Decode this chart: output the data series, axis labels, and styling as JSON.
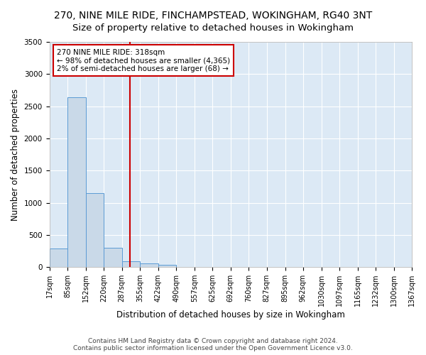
{
  "title_line1": "270, NINE MILE RIDE, FINCHAMPSTEAD, WOKINGHAM, RG40 3NT",
  "title_line2": "Size of property relative to detached houses in Wokingham",
  "xlabel": "Distribution of detached houses by size in Wokingham",
  "ylabel": "Number of detached properties",
  "bar_color": "#c9d9e8",
  "bar_edge_color": "#5b9bd5",
  "vline_x": 318,
  "vline_color": "#cc0000",
  "annotation_text": "270 NINE MILE RIDE: 318sqm\n← 98% of detached houses are smaller (4,365)\n2% of semi-detached houses are larger (68) →",
  "annotation_box_color": "#ffffff",
  "annotation_box_edge_color": "#cc0000",
  "footer_text": "Contains HM Land Registry data © Crown copyright and database right 2024.\nContains public sector information licensed under the Open Government Licence v3.0.",
  "bin_edges": [
    17,
    85,
    152,
    220,
    287,
    355,
    422,
    490,
    557,
    625,
    692,
    760,
    827,
    895,
    962,
    1030,
    1097,
    1165,
    1232,
    1300,
    1367
  ],
  "bin_counts": [
    290,
    2635,
    1145,
    295,
    95,
    60,
    35,
    0,
    0,
    0,
    0,
    0,
    0,
    0,
    0,
    0,
    0,
    0,
    0,
    0
  ],
  "ylim": [
    0,
    3500
  ],
  "xlim": [
    17,
    1367
  ],
  "ytick_interval": 500,
  "background_color": "#dce9f5",
  "grid_color": "#ffffff",
  "fig_background": "#ffffff",
  "title_fontsize": 10,
  "subtitle_fontsize": 9.5,
  "tick_label_fontsize": 7,
  "ylabel_fontsize": 8.5,
  "xlabel_fontsize": 8.5,
  "annotation_fontsize": 7.5,
  "footer_fontsize": 6.5
}
